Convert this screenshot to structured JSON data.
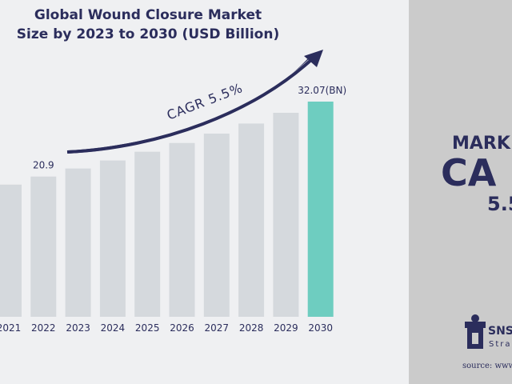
{
  "chart_data": {
    "type": "bar",
    "title": [
      "Global Wound Closure Market",
      "Size by 2023 to 2030 (USD Billion)"
    ],
    "categories": [
      "2021",
      "2022",
      "2023",
      "2024",
      "2025",
      "2026",
      "2027",
      "2028",
      "2029",
      "2030"
    ],
    "values": [
      19.7,
      20.9,
      22.1,
      23.3,
      24.6,
      25.9,
      27.3,
      28.8,
      30.4,
      32.07
    ],
    "value_labels": [
      null,
      "20.9",
      null,
      null,
      null,
      null,
      null,
      null,
      null,
      "32.07(BN)"
    ],
    "colors": [
      "#d5d9dd",
      "#d5d9dd",
      "#d5d9dd",
      "#d5d9dd",
      "#d5d9dd",
      "#d5d9dd",
      "#d5d9dd",
      "#d5d9dd",
      "#d5d9dd",
      "#6ecdc0"
    ],
    "annotation": "CAGR  5.5%"
  },
  "panel": {
    "line1": "MARK",
    "line2": "CA",
    "line3": "5.5",
    "brand": "SNS",
    "brand_sub": "Stra",
    "source": "source: www"
  }
}
